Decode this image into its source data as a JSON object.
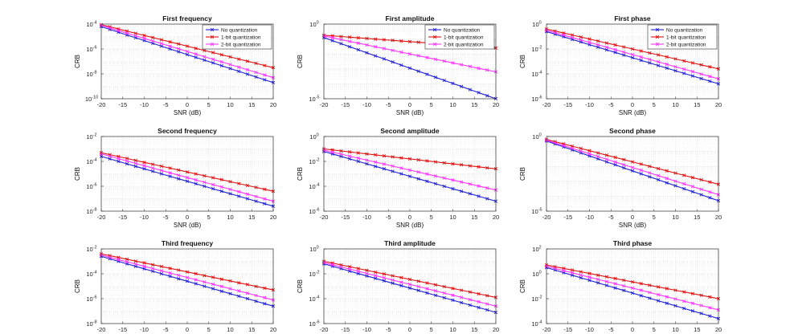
{
  "figure": {
    "xlabel": "SNR (dB)",
    "ylabel": "CRB",
    "x_ticks": [
      -20,
      -15,
      -10,
      -5,
      0,
      5,
      10,
      15,
      20
    ],
    "legend_entries": [
      "No quantization",
      "1-bit quantization",
      "2-bit quantization"
    ],
    "series_colors": {
      "No quantization": "#1f1fd6",
      "1-bit quantization": "#e01010",
      "2-bit quantization": "#ff33ff"
    }
  },
  "chart_data": [
    {
      "type": "line",
      "title": "First frequency",
      "xlabel": "SNR (dB)",
      "ylabel": "CRB",
      "x": [
        -20,
        20
      ],
      "xlim": [
        -20,
        20
      ],
      "yscale": "log",
      "ylim_exp": [
        -10,
        -4
      ],
      "ytick_exp": [
        -10,
        -8,
        -6,
        -4
      ],
      "legend": "top-right",
      "series": [
        {
          "name": "No quantization",
          "log10_endpoints": [
            -4.2,
            -8.7
          ]
        },
        {
          "name": "1-bit quantization",
          "log10_endpoints": [
            -4.05,
            -7.5
          ]
        },
        {
          "name": "2-bit quantization",
          "log10_endpoints": [
            -4.1,
            -8.3
          ]
        }
      ]
    },
    {
      "type": "line",
      "title": "First amplitude",
      "xlabel": "SNR (dB)",
      "ylabel": "CRB",
      "x": [
        -20,
        20
      ],
      "xlim": [
        -20,
        20
      ],
      "yscale": "log",
      "ylim_exp": [
        -5,
        0
      ],
      "ytick_exp": [
        -5,
        0
      ],
      "legend": "top-right",
      "series": [
        {
          "name": "No quantization",
          "log10_endpoints": [
            -0.9,
            -5.0
          ]
        },
        {
          "name": "1-bit quantization",
          "log10_endpoints": [
            -0.75,
            -1.6
          ]
        },
        {
          "name": "2-bit quantization",
          "log10_endpoints": [
            -0.8,
            -3.2
          ]
        }
      ]
    },
    {
      "type": "line",
      "title": "First phase",
      "xlabel": "SNR (dB)",
      "ylabel": "CRB",
      "x": [
        -20,
        20
      ],
      "xlim": [
        -20,
        20
      ],
      "yscale": "log",
      "ylim_exp": [
        -6,
        0
      ],
      "ytick_exp": [
        -6,
        -4,
        -2,
        0
      ],
      "legend": "top-right",
      "series": [
        {
          "name": "No quantization",
          "log10_endpoints": [
            -0.6,
            -4.8
          ]
        },
        {
          "name": "1-bit quantization",
          "log10_endpoints": [
            -0.4,
            -3.6
          ]
        },
        {
          "name": "2-bit quantization",
          "log10_endpoints": [
            -0.5,
            -4.4
          ]
        }
      ]
    },
    {
      "type": "line",
      "title": "Second frequency",
      "xlabel": "SNR (dB)",
      "ylabel": "CRB",
      "x": [
        -20,
        20
      ],
      "xlim": [
        -20,
        20
      ],
      "yscale": "log",
      "ylim_exp": [
        -8,
        -2
      ],
      "ytick_exp": [
        -8,
        -6,
        -4,
        -2
      ],
      "legend": "none",
      "series": [
        {
          "name": "No quantization",
          "log10_endpoints": [
            -3.6,
            -7.6
          ]
        },
        {
          "name": "1-bit quantization",
          "log10_endpoints": [
            -3.3,
            -6.4
          ]
        },
        {
          "name": "2-bit quantization",
          "log10_endpoints": [
            -3.4,
            -7.2
          ]
        }
      ]
    },
    {
      "type": "line",
      "title": "Second amplitude",
      "xlabel": "SNR (dB)",
      "ylabel": "CRB",
      "x": [
        -20,
        20
      ],
      "xlim": [
        -20,
        20
      ],
      "yscale": "log",
      "ylim_exp": [
        -6,
        0
      ],
      "ytick_exp": [
        -6,
        -4,
        -2,
        0
      ],
      "legend": "none",
      "series": [
        {
          "name": "No quantization",
          "log10_endpoints": [
            -1.2,
            -5.2
          ]
        },
        {
          "name": "1-bit quantization",
          "log10_endpoints": [
            -1.0,
            -2.6
          ]
        },
        {
          "name": "2-bit quantization",
          "log10_endpoints": [
            -1.1,
            -4.3
          ]
        }
      ]
    },
    {
      "type": "line",
      "title": "Second phase",
      "xlabel": "SNR (dB)",
      "ylabel": "CRB",
      "x": [
        -20,
        20
      ],
      "xlim": [
        -20,
        20
      ],
      "yscale": "log",
      "ylim_exp": [
        -5,
        0
      ],
      "ytick_exp": [
        -5,
        0
      ],
      "legend": "none",
      "series": [
        {
          "name": "No quantization",
          "log10_endpoints": [
            -0.3,
            -4.3
          ]
        },
        {
          "name": "1-bit quantization",
          "log10_endpoints": [
            -0.2,
            -3.2
          ]
        },
        {
          "name": "2-bit quantization",
          "log10_endpoints": [
            -0.25,
            -3.9
          ]
        }
      ]
    },
    {
      "type": "line",
      "title": "Third frequency",
      "xlabel": "SNR (dB)",
      "ylabel": "CRB",
      "x": [
        -20,
        20
      ],
      "xlim": [
        -20,
        20
      ],
      "yscale": "log",
      "ylim_exp": [
        -8,
        -2
      ],
      "ytick_exp": [
        -8,
        -6,
        -4,
        -2
      ],
      "legend": "none",
      "series": [
        {
          "name": "No quantization",
          "log10_endpoints": [
            -2.6,
            -6.6
          ]
        },
        {
          "name": "1-bit quantization",
          "log10_endpoints": [
            -2.4,
            -5.3
          ]
        },
        {
          "name": "2-bit quantization",
          "log10_endpoints": [
            -2.5,
            -6.1
          ]
        }
      ]
    },
    {
      "type": "line",
      "title": "Third amplitude",
      "xlabel": "SNR (dB)",
      "ylabel": "CRB",
      "x": [
        -20,
        20
      ],
      "xlim": [
        -20,
        20
      ],
      "yscale": "log",
      "ylim_exp": [
        -6,
        0
      ],
      "ytick_exp": [
        -6,
        -4,
        -2,
        0
      ],
      "legend": "none",
      "series": [
        {
          "name": "No quantization",
          "log10_endpoints": [
            -1.2,
            -5.1
          ]
        },
        {
          "name": "1-bit quantization",
          "log10_endpoints": [
            -1.0,
            -3.9
          ]
        },
        {
          "name": "2-bit quantization",
          "log10_endpoints": [
            -1.1,
            -4.6
          ]
        }
      ]
    },
    {
      "type": "line",
      "title": "Third phase",
      "xlabel": "SNR (dB)",
      "ylabel": "CRB",
      "x": [
        -20,
        20
      ],
      "xlim": [
        -20,
        20
      ],
      "yscale": "log",
      "ylim_exp": [
        -4,
        2
      ],
      "ytick_exp": [
        -4,
        -2,
        0,
        2
      ],
      "legend": "none",
      "series": [
        {
          "name": "No quantization",
          "log10_endpoints": [
            0.5,
            -3.6
          ]
        },
        {
          "name": "1-bit quantization",
          "log10_endpoints": [
            0.7,
            -2.0
          ]
        },
        {
          "name": "2-bit quantization",
          "log10_endpoints": [
            0.6,
            -2.9
          ]
        }
      ]
    }
  ]
}
